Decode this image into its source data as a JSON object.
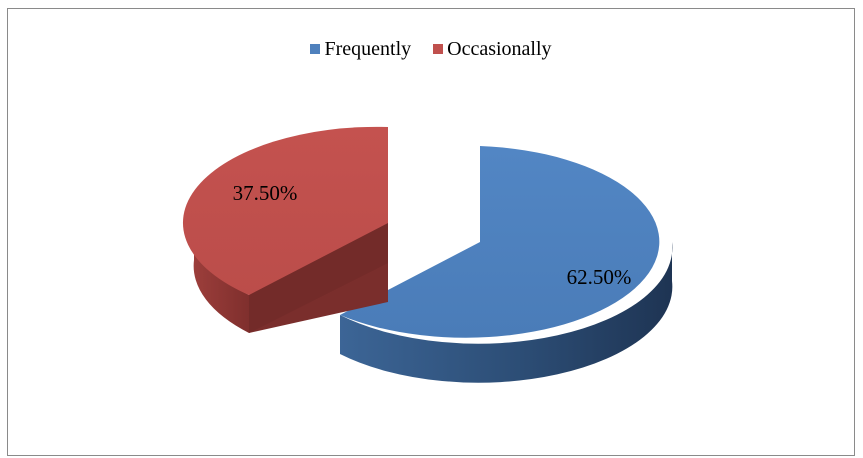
{
  "chart_data": {
    "type": "pie",
    "title": "",
    "categories": [
      "Frequently",
      "Occasionally"
    ],
    "values": [
      62.5,
      37.5
    ],
    "labels": [
      "62.50%",
      "37.50%"
    ],
    "colors": [
      "#4f81bd",
      "#c0504d"
    ],
    "legend_position": "top",
    "exploded": true,
    "three_d": true
  },
  "legend": {
    "items": [
      {
        "label": "Frequently",
        "color": "#4f81bd"
      },
      {
        "label": "Occasionally",
        "color": "#c0504d"
      }
    ]
  }
}
